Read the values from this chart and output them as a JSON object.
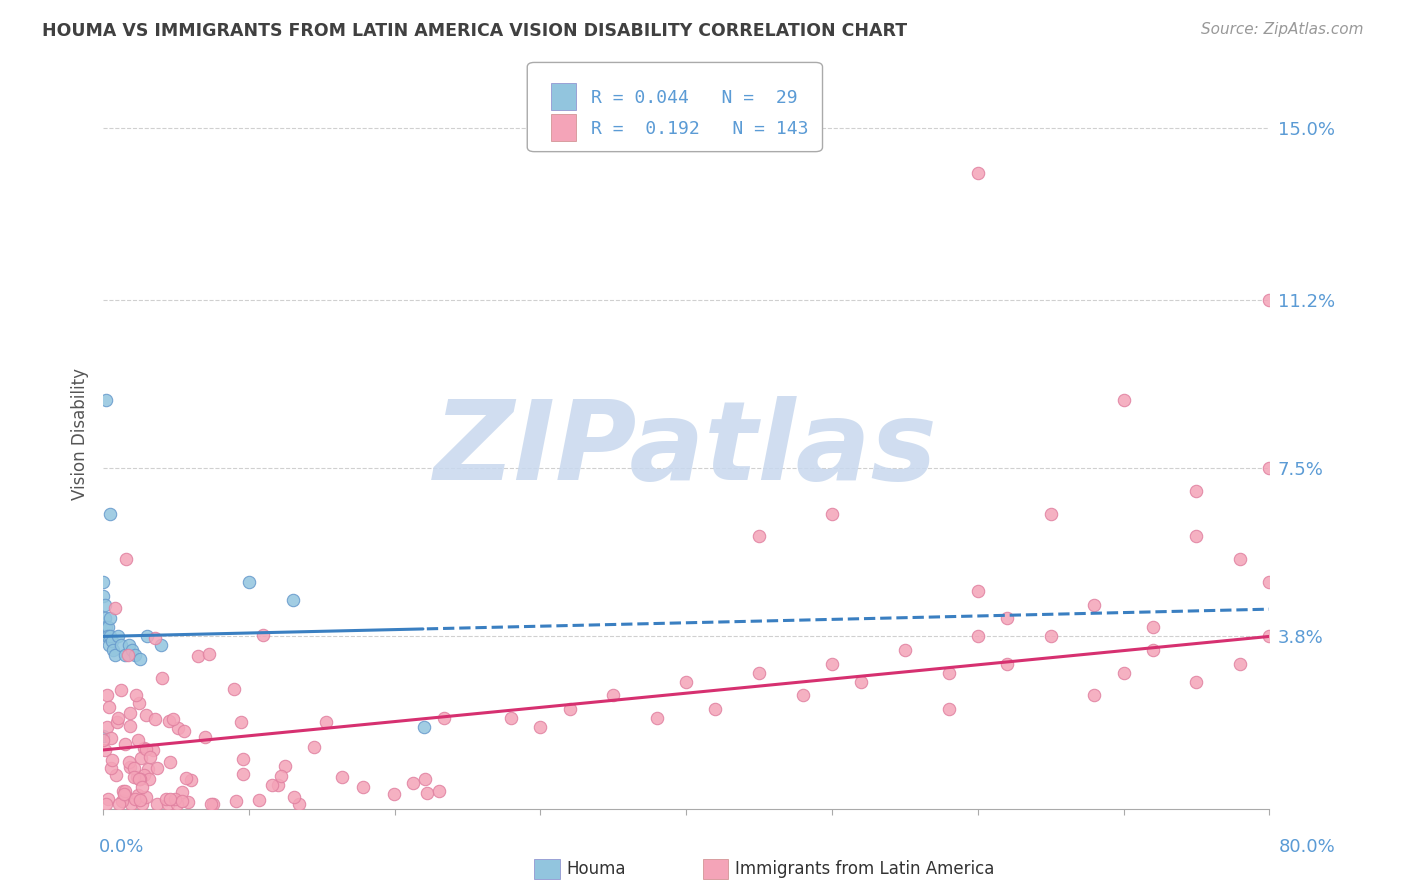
{
  "title": "HOUMA VS IMMIGRANTS FROM LATIN AMERICA VISION DISABILITY CORRELATION CHART",
  "source": "Source: ZipAtlas.com",
  "ylabel": "Vision Disability",
  "legend_blue_r": "0.044",
  "legend_blue_n": "29",
  "legend_pink_r": "0.192",
  "legend_pink_n": "143",
  "xlim": [
    0.0,
    0.8
  ],
  "ylim": [
    0.0,
    0.165
  ],
  "blue_color": "#92c5de",
  "pink_color": "#f4a4b8",
  "blue_line_color": "#3a7fc1",
  "pink_line_color": "#d63070",
  "watermark_text": "ZIPatlas",
  "watermark_color": "#c8d8ee",
  "background_color": "#ffffff",
  "grid_color": "#d0d0d0",
  "ytick_label_color": "#5b9bd5",
  "title_color": "#404040",
  "source_color": "#999999",
  "axis_label_color": "#5b9bd5",
  "yticks": [
    0.038,
    0.075,
    0.112,
    0.15
  ],
  "ytick_labels": [
    "3.8%",
    "7.5%",
    "11.2%",
    "15.0%"
  ]
}
